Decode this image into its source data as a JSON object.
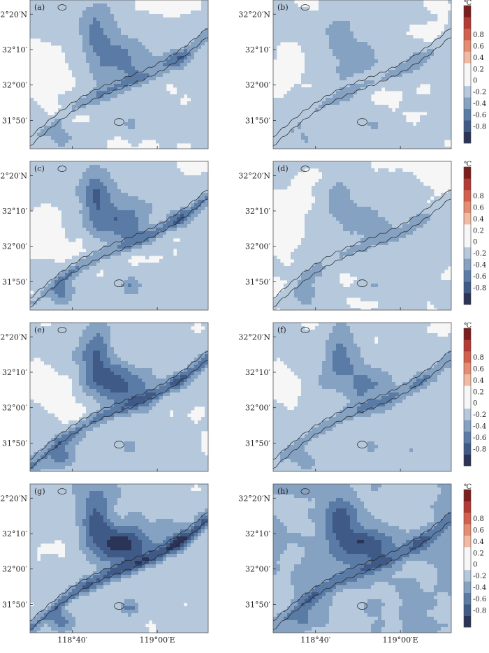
{
  "chart_data": {
    "type": "heatmap",
    "title": "",
    "unit": "℃",
    "xlabel": "",
    "ylabel": "",
    "lon_range": [
      118.5,
      119.2
    ],
    "lat_range": [
      31.7,
      32.4
    ],
    "x_ticks": [
      {
        "value": 118.6667,
        "label": "118°40′"
      },
      {
        "value": 119.0,
        "label": "119°00′E"
      }
    ],
    "y_ticks": [
      {
        "value": 32.3333,
        "label": "32°20′N"
      },
      {
        "value": 32.1667,
        "label": "32°10′"
      },
      {
        "value": 32.0,
        "label": "32°00′"
      },
      {
        "value": 31.8333,
        "label": "31°50′"
      }
    ],
    "colorbar": {
      "levels": [
        -0.8,
        -0.6,
        -0.4,
        -0.2,
        0,
        0.2,
        0.4,
        0.6,
        0.8
      ],
      "tick_labels": [
        "-0.8",
        "-0.6",
        "-0.4",
        "-0.2",
        "0",
        "0.2",
        "0.4",
        "0.6",
        "0.8"
      ],
      "colors": [
        "#2b3457",
        "#3f5a86",
        "#5a7ba6",
        "#86a2c2",
        "#b6c9dc",
        "#f6f6f6",
        "#f6f6f6",
        "#f2b9a3",
        "#e68c72",
        "#d2604c",
        "#b53a33",
        "#7d1d1c"
      ]
    },
    "panels": [
      {
        "label": "(a)",
        "urban_cooling": -0.4,
        "river_cooling": -0.25,
        "warm_patch": 0.2,
        "background": -0.05
      },
      {
        "label": "(b)",
        "urban_cooling": -0.25,
        "river_cooling": -0.15,
        "warm_patch": 0.3,
        "background": -0.05
      },
      {
        "label": "(c)",
        "urban_cooling": -0.55,
        "river_cooling": -0.35,
        "warm_patch": 0.2,
        "background": -0.08
      },
      {
        "label": "(d)",
        "urban_cooling": -0.3,
        "river_cooling": -0.15,
        "warm_patch": 0.25,
        "background": -0.05
      },
      {
        "label": "(e)",
        "urban_cooling": -0.6,
        "river_cooling": -0.4,
        "warm_patch": 0.2,
        "background": -0.08
      },
      {
        "label": "(f)",
        "urban_cooling": -0.4,
        "river_cooling": -0.25,
        "warm_patch": 0.3,
        "background": -0.1
      },
      {
        "label": "(g)",
        "urban_cooling": -0.75,
        "river_cooling": -0.5,
        "warm_patch": 0.2,
        "background": -0.1
      },
      {
        "label": "(h)",
        "urban_cooling": -0.5,
        "river_cooling": -0.3,
        "warm_patch": 0.1,
        "background": -0.2
      }
    ]
  }
}
